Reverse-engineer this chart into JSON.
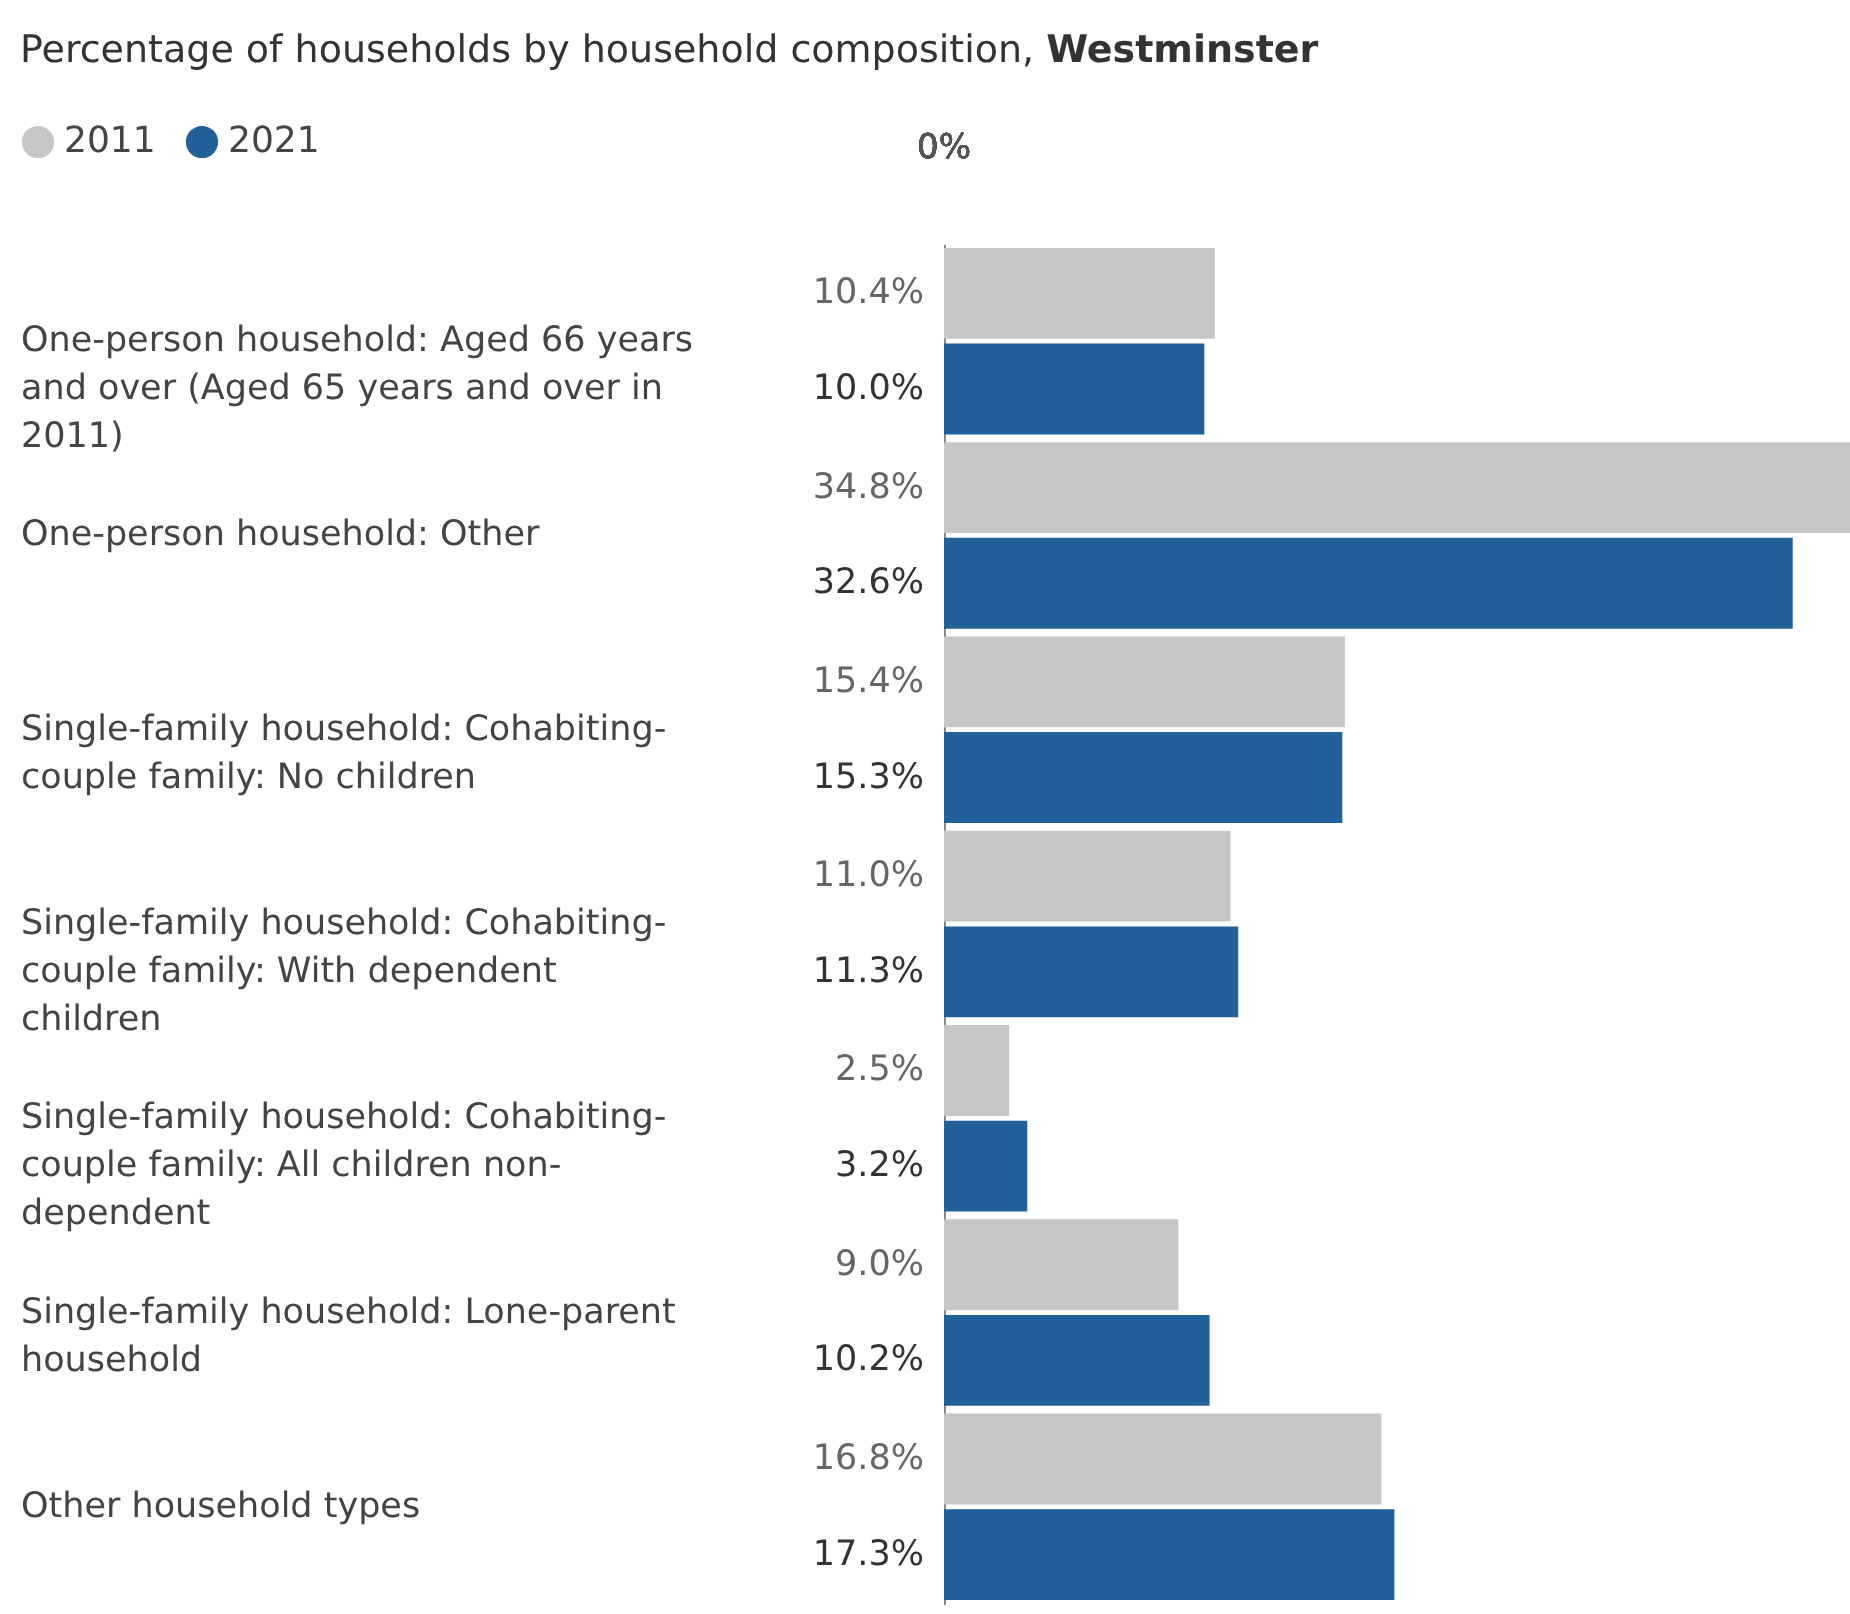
{
  "chart_data": {
    "type": "bar",
    "orientation": "horizontal",
    "title": "Percentage of households by household composition, Westminster",
    "categories": [
      "One-person household: Aged 66 years and over (Aged 65 years and over in 2011)",
      "One-person household: Other",
      "Single-family household: Cohabiting-couple family: No children",
      "Single-family household: Cohabiting-couple family: With dependent children",
      "Single-family household: Cohabiting-couple family: All children non-dependent",
      "Single-family household: Lone-parent household",
      "Other household types"
    ],
    "series": [
      {
        "name": "2011",
        "color": "#c6c6c6",
        "values": [
          10.4,
          34.8,
          15.4,
          11.0,
          2.5,
          9.0,
          16.8
        ],
        "value_labels": [
          "10.4%",
          "34.8%",
          "15.4%",
          "11.0%",
          "2.5%",
          "9.0%",
          "16.8%"
        ]
      },
      {
        "name": "2021",
        "color": "#22609a",
        "values": [
          10.0,
          32.6,
          15.3,
          11.3,
          3.2,
          10.2,
          17.3
        ],
        "value_labels": [
          "10.0%",
          "32.6%",
          "15.3%",
          "11.3%",
          "3.2%",
          "10.2%",
          "17.3%"
        ]
      }
    ],
    "xlim": [
      0,
      34.8
    ],
    "annotations": [
      "0%"
    ],
    "legend": "top left"
  }
}
